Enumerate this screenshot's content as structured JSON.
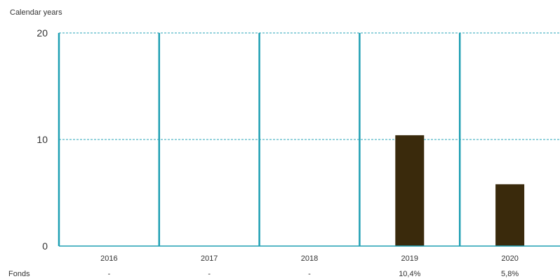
{
  "chart_data": {
    "type": "bar",
    "title": "Calendar years",
    "categories": [
      "2016",
      "2017",
      "2018",
      "2019",
      "2020"
    ],
    "series": [
      {
        "name": "Fonds",
        "values": [
          null,
          null,
          null,
          10.4,
          5.8
        ]
      }
    ],
    "table": {
      "row_label": "Fonds",
      "cells": [
        "-",
        "-",
        "-",
        "10,4%",
        "5,8%"
      ]
    },
    "yticks": [
      "0",
      "10",
      "20"
    ],
    "ylim": [
      0,
      20
    ],
    "grid": true,
    "colors": {
      "bar": "#3a2a0c",
      "grid": "#2aa6b8",
      "separator": "#1e9fb3"
    }
  }
}
